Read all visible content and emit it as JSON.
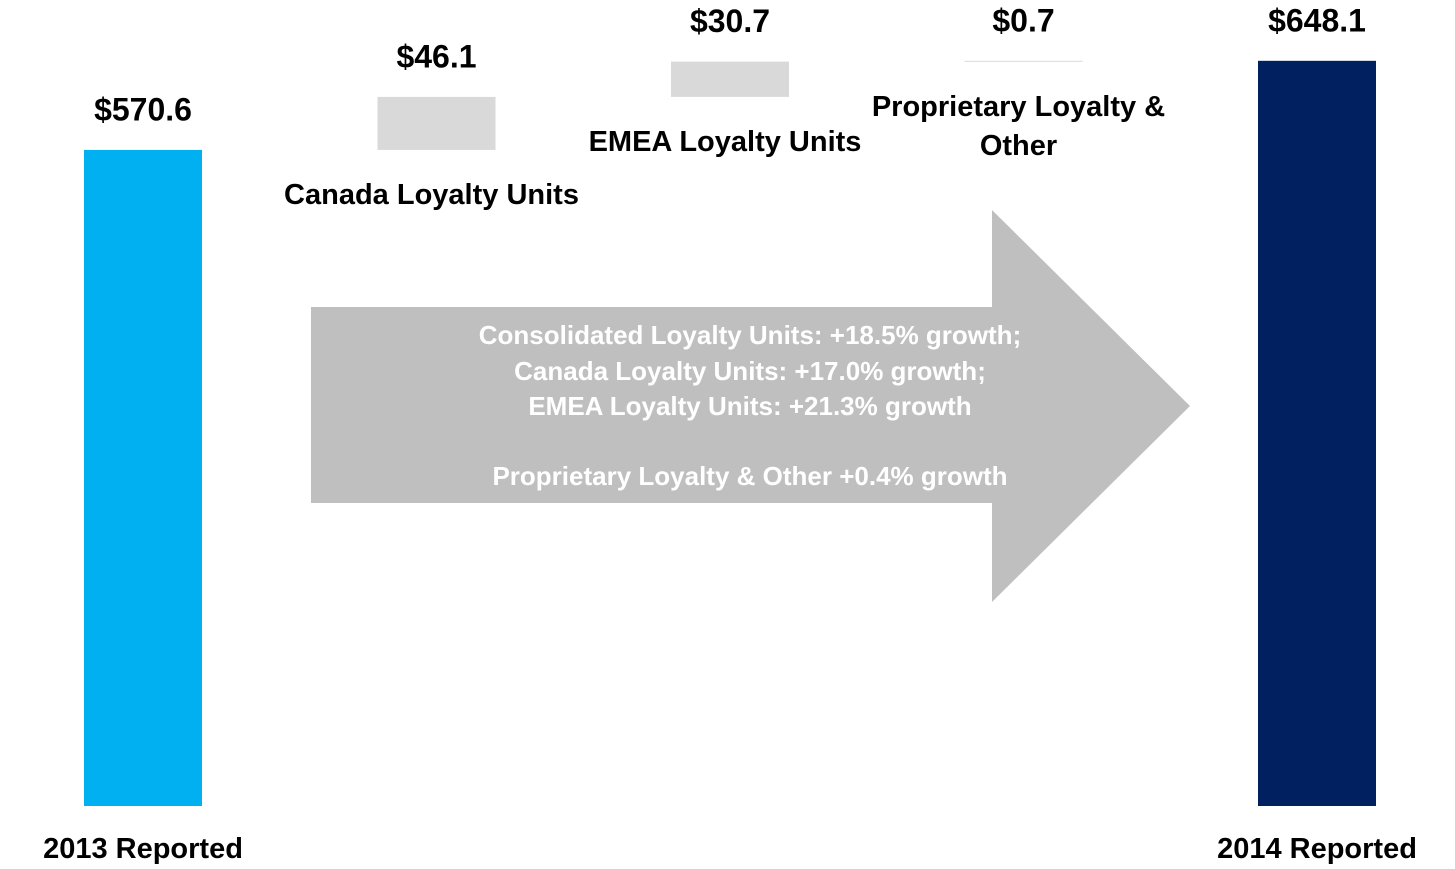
{
  "chart_data": {
    "type": "waterfall",
    "categories": [
      "2013 Reported",
      "Canada Loyalty Units",
      "EMEA Loyalty Units",
      "Proprietary Loyalty & Other",
      "2014 Reported"
    ],
    "values": [
      570.6,
      46.1,
      30.7,
      0.7,
      648.1
    ],
    "value_labels": [
      "$570.6",
      "$46.1",
      "$30.7",
      "$0.7",
      "$648.1"
    ],
    "measure": [
      "absolute",
      "relative",
      "relative",
      "relative",
      "total"
    ],
    "colors": [
      "#00b0f0",
      "#d9d9d9",
      "#d9d9d9",
      "#d9d9d9",
      "#002060"
    ],
    "ylim": [
      0,
      701
    ],
    "annotations": [
      "Consolidated Loyalty Units:  +18.5% growth;",
      "Canada Loyalty Units: +17.0% growth;",
      "EMEA Loyalty Units: +21.3% growth",
      "Proprietary Loyalty & Other +0.4% growth"
    ]
  }
}
